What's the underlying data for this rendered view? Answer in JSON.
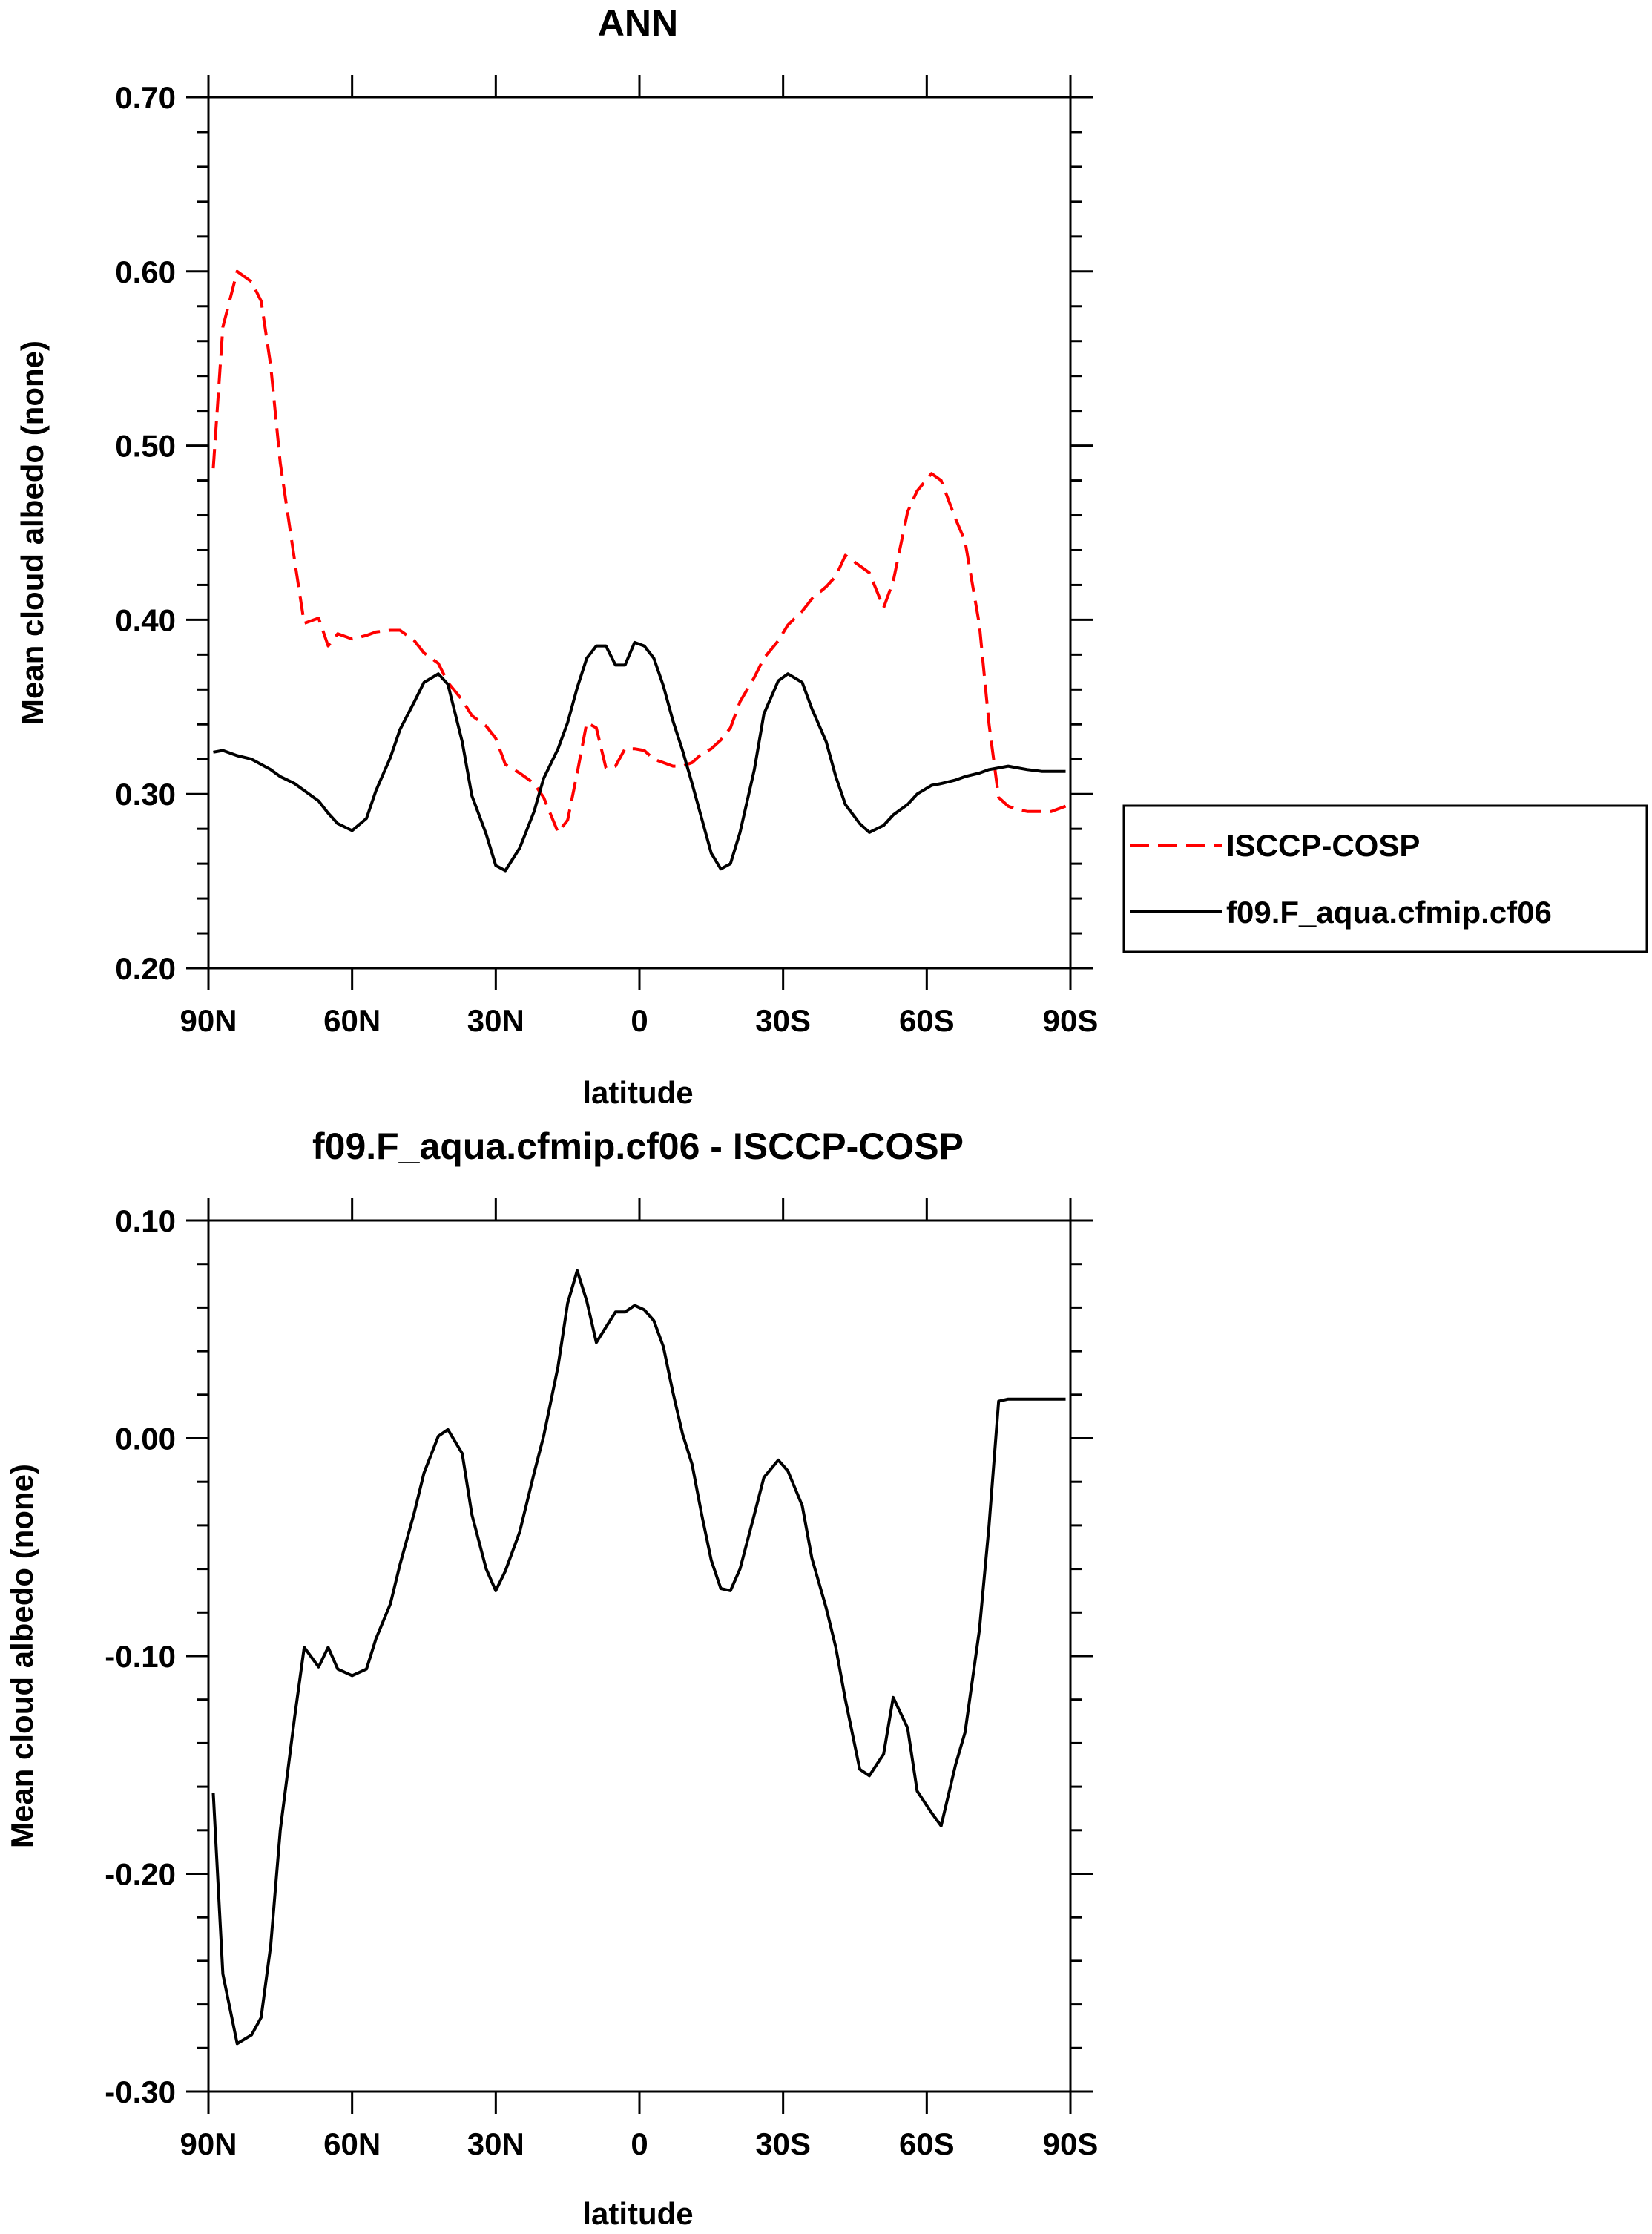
{
  "chart_data": [
    {
      "type": "line",
      "title": "ANN",
      "xlabel": "latitude",
      "ylabel": "Mean cloud albedo (none)",
      "xlim": [
        90,
        -90
      ],
      "ylim": [
        0.2,
        0.7
      ],
      "xticks": [
        90,
        60,
        30,
        0,
        -30,
        -60,
        -90
      ],
      "xtick_labels": [
        "90N",
        "60N",
        "30N",
        "0",
        "30S",
        "60S",
        "90S"
      ],
      "yticks": [
        0.2,
        0.3,
        0.4,
        0.5,
        0.6,
        0.7
      ],
      "ytick_labels": [
        "0.20",
        "0.30",
        "0.40",
        "0.50",
        "0.60",
        "0.70"
      ],
      "grid": false,
      "legend_position": "outside-right",
      "series": [
        {
          "name": "ISCCP-COSP",
          "color": "#ff0000",
          "style": "dashed",
          "x": [
            89,
            87,
            84,
            81,
            79,
            77,
            75,
            72,
            70,
            67,
            65,
            63,
            60,
            57,
            55,
            52,
            50,
            47,
            45,
            42,
            40,
            37,
            35,
            32,
            30,
            28,
            25,
            22,
            20,
            17,
            15,
            13,
            11,
            9,
            7,
            5,
            3,
            1,
            -1,
            -3,
            -5,
            -7,
            -9,
            -11,
            -13,
            -15,
            -17,
            -19,
            -21,
            -24,
            -26,
            -29,
            -31,
            -34,
            -36,
            -39,
            -41,
            -43,
            -46,
            -48,
            -51,
            -53,
            -56,
            -58,
            -61,
            -63,
            -66,
            -68,
            -71,
            -73,
            -75,
            -77,
            -79,
            -81,
            -84,
            -86,
            -89
          ],
          "y": [
            0.487,
            0.568,
            0.6,
            0.594,
            0.583,
            0.546,
            0.49,
            0.434,
            0.398,
            0.401,
            0.385,
            0.392,
            0.389,
            0.391,
            0.393,
            0.394,
            0.394,
            0.388,
            0.381,
            0.375,
            0.364,
            0.354,
            0.345,
            0.339,
            0.332,
            0.317,
            0.312,
            0.306,
            0.298,
            0.278,
            0.285,
            0.312,
            0.341,
            0.338,
            0.315,
            0.316,
            0.326,
            0.326,
            0.325,
            0.32,
            0.318,
            0.316,
            0.316,
            0.318,
            0.323,
            0.326,
            0.331,
            0.338,
            0.353,
            0.367,
            0.378,
            0.388,
            0.397,
            0.405,
            0.412,
            0.419,
            0.425,
            0.437,
            0.431,
            0.427,
            0.407,
            0.422,
            0.462,
            0.474,
            0.484,
            0.48,
            0.458,
            0.445,
            0.397,
            0.34,
            0.298,
            0.293,
            0.291,
            0.29,
            0.29,
            0.29,
            0.293
          ]
        },
        {
          "name": "f09.F_aqua.cfmip.cf06",
          "color": "#000000",
          "style": "solid",
          "x": [
            89,
            87,
            84,
            81,
            79,
            77,
            75,
            72,
            70,
            67,
            65,
            63,
            60,
            57,
            55,
            52,
            50,
            47,
            45,
            42,
            40,
            37,
            35,
            32,
            30,
            28,
            25,
            22,
            20,
            17,
            15,
            13,
            11,
            9,
            7,
            5,
            3,
            1,
            -1,
            -3,
            -5,
            -7,
            -9,
            -11,
            -13,
            -15,
            -17,
            -19,
            -21,
            -24,
            -26,
            -29,
            -31,
            -34,
            -36,
            -39,
            -41,
            -43,
            -46,
            -48,
            -51,
            -53,
            -56,
            -58,
            -61,
            -63,
            -66,
            -68,
            -71,
            -73,
            -75,
            -77,
            -79,
            -81,
            -84,
            -86,
            -89
          ],
          "y": [
            0.324,
            0.325,
            0.322,
            0.32,
            0.317,
            0.314,
            0.31,
            0.306,
            0.302,
            0.296,
            0.289,
            0.283,
            0.279,
            0.286,
            0.302,
            0.321,
            0.337,
            0.353,
            0.364,
            0.369,
            0.363,
            0.33,
            0.299,
            0.277,
            0.259,
            0.256,
            0.269,
            0.29,
            0.309,
            0.326,
            0.341,
            0.361,
            0.378,
            0.385,
            0.385,
            0.374,
            0.374,
            0.387,
            0.385,
            0.378,
            0.362,
            0.342,
            0.325,
            0.306,
            0.286,
            0.266,
            0.257,
            0.26,
            0.278,
            0.314,
            0.346,
            0.365,
            0.369,
            0.364,
            0.349,
            0.33,
            0.31,
            0.294,
            0.283,
            0.278,
            0.282,
            0.288,
            0.294,
            0.3,
            0.305,
            0.306,
            0.308,
            0.31,
            0.312,
            0.314,
            0.315,
            0.316,
            0.315,
            0.314,
            0.313,
            0.313,
            0.313
          ]
        }
      ]
    },
    {
      "type": "line",
      "title": "f09.F_aqua.cfmip.cf06 - ISCCP-COSP",
      "xlabel": "latitude",
      "ylabel": "Mean cloud albedo (none)",
      "xlim": [
        90,
        -90
      ],
      "ylim": [
        -0.3,
        0.1
      ],
      "xticks": [
        90,
        60,
        30,
        0,
        -30,
        -60,
        -90
      ],
      "xtick_labels": [
        "90N",
        "60N",
        "30N",
        "0",
        "30S",
        "60S",
        "90S"
      ],
      "yticks": [
        -0.3,
        -0.2,
        -0.1,
        0.0,
        0.1
      ],
      "ytick_labels": [
        "-0.30",
        "-0.20",
        "-0.10",
        "0.00",
        "0.10"
      ],
      "grid": false,
      "series": [
        {
          "color": "#000000",
          "style": "solid",
          "x": [
            89,
            87,
            84,
            81,
            79,
            77,
            75,
            72,
            70,
            67,
            65,
            63,
            60,
            57,
            55,
            52,
            50,
            47,
            45,
            42,
            40,
            37,
            35,
            32,
            30,
            28,
            25,
            22,
            20,
            17,
            15,
            13,
            11,
            9,
            7,
            5,
            3,
            1,
            -1,
            -3,
            -5,
            -7,
            -9,
            -11,
            -13,
            -15,
            -17,
            -19,
            -21,
            -24,
            -26,
            -29,
            -31,
            -34,
            -36,
            -39,
            -41,
            -43,
            -46,
            -48,
            -51,
            -53,
            -56,
            -58,
            -61,
            -63,
            -66,
            -68,
            -71,
            -73,
            -75,
            -77,
            -79,
            -81,
            -84,
            -86,
            -89
          ],
          "y": [
            -0.163,
            -0.246,
            -0.278,
            -0.274,
            -0.266,
            -0.233,
            -0.18,
            -0.128,
            -0.096,
            -0.105,
            -0.096,
            -0.106,
            -0.109,
            -0.106,
            -0.092,
            -0.076,
            -0.058,
            -0.034,
            -0.016,
            0.001,
            0.004,
            -0.007,
            -0.035,
            -0.06,
            -0.07,
            -0.061,
            -0.043,
            -0.016,
            0.001,
            0.033,
            0.062,
            0.077,
            0.063,
            0.044,
            0.051,
            0.058,
            0.058,
            0.061,
            0.059,
            0.054,
            0.042,
            0.021,
            0.002,
            -0.012,
            -0.035,
            -0.056,
            -0.069,
            -0.07,
            -0.06,
            -0.035,
            -0.018,
            -0.01,
            -0.015,
            -0.031,
            -0.055,
            -0.078,
            -0.096,
            -0.12,
            -0.152,
            -0.155,
            -0.145,
            -0.119,
            -0.133,
            -0.162,
            -0.172,
            -0.178,
            -0.15,
            -0.135,
            -0.088,
            -0.04,
            0.017,
            0.018,
            0.018,
            0.018,
            0.018,
            0.018,
            0.018
          ]
        }
      ]
    }
  ]
}
